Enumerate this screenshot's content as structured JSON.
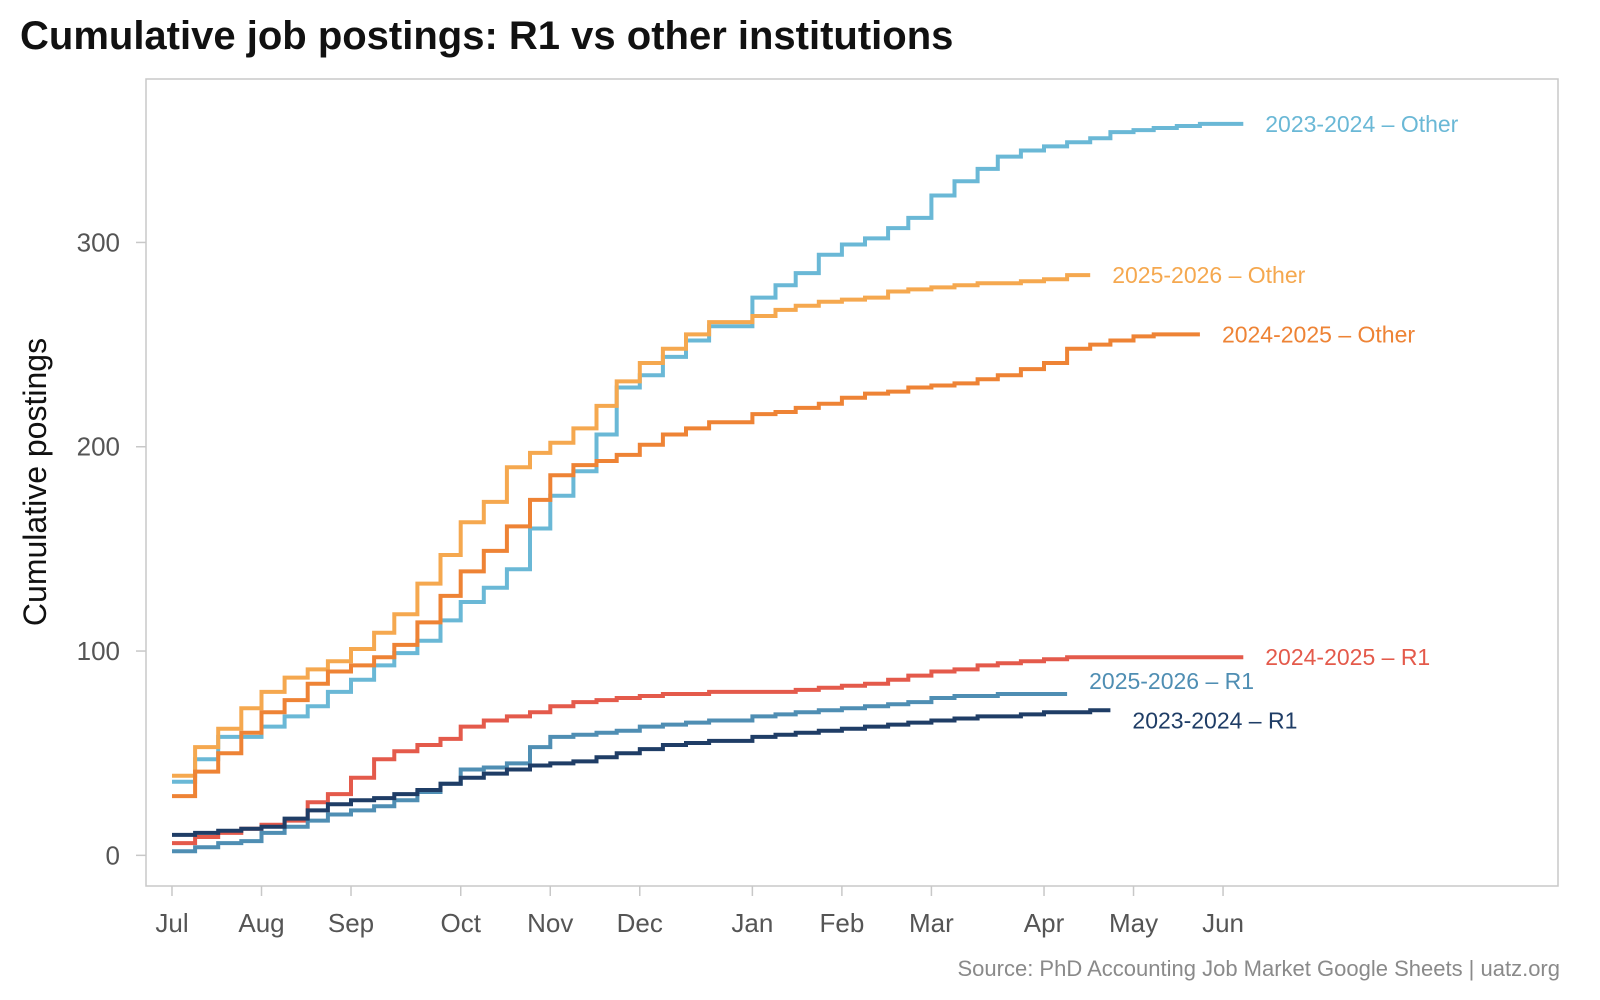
{
  "title": "Cumulative job postings: R1 vs other institutions",
  "source": "Source: PhD Accounting Job Market Google Sheets | uatz.org",
  "chart_data": {
    "type": "line",
    "step": true,
    "title": "Cumulative job postings: R1 vs other institutions",
    "xlabel": "",
    "ylabel": "Cumulative postings",
    "x_unit": "days since Jul 1",
    "x_ticks": [
      {
        "label": "Jul",
        "x": 0
      },
      {
        "label": "Aug",
        "x": 31
      },
      {
        "label": "Sep",
        "x": 62
      },
      {
        "label": "Oct",
        "x": 100
      },
      {
        "label": "Nov",
        "x": 131
      },
      {
        "label": "Dec",
        "x": 162
      },
      {
        "label": "Jan",
        "x": 201
      },
      {
        "label": "Feb",
        "x": 232
      },
      {
        "label": "Mar",
        "x": 263
      },
      {
        "label": "Apr",
        "x": 302
      },
      {
        "label": "May",
        "x": 333
      },
      {
        "label": "Jun",
        "x": 364
      }
    ],
    "y_ticks": [
      0,
      100,
      200,
      300
    ],
    "xlim": [
      -9,
      480
    ],
    "ylim": [
      -15,
      380
    ],
    "grid": false,
    "legend": "direct labels at line ends",
    "series": [
      {
        "name": "2023-2024 – Other",
        "color": "#6ab8d6",
        "x": [
          0,
          8,
          16,
          31,
          39,
          47,
          54,
          62,
          70,
          77,
          85,
          93,
          100,
          108,
          116,
          124,
          131,
          139,
          147,
          154,
          162,
          170,
          178,
          186,
          201,
          209,
          216,
          224,
          232,
          240,
          248,
          255,
          263,
          271,
          279,
          286,
          294,
          302,
          310,
          318,
          325,
          333,
          340,
          348,
          356,
          363,
          371
        ],
        "y": [
          36,
          47,
          58,
          63,
          68,
          73,
          80,
          86,
          93,
          99,
          105,
          115,
          124,
          131,
          140,
          160,
          176,
          188,
          206,
          229,
          235,
          244,
          252,
          259,
          273,
          279,
          285,
          294,
          299,
          302,
          307,
          312,
          323,
          330,
          336,
          342,
          345,
          347,
          349,
          351,
          354,
          355,
          356,
          357,
          358,
          358,
          358
        ]
      },
      {
        "name": "2025-2026 – Other",
        "color": "#f5a84f",
        "x": [
          0,
          8,
          16,
          24,
          31,
          39,
          47,
          54,
          62,
          70,
          77,
          85,
          93,
          100,
          108,
          116,
          124,
          131,
          139,
          147,
          154,
          162,
          170,
          178,
          186,
          201,
          209,
          216,
          224,
          232,
          240,
          248,
          255,
          263,
          271,
          279,
          286,
          294,
          302,
          310,
          318
        ],
        "y": [
          39,
          53,
          62,
          72,
          80,
          87,
          91,
          95,
          101,
          109,
          118,
          133,
          147,
          163,
          173,
          190,
          197,
          202,
          209,
          220,
          232,
          241,
          248,
          255,
          261,
          264,
          267,
          269,
          271,
          272,
          273,
          276,
          277,
          278,
          279,
          280,
          280,
          281,
          282,
          284,
          284
        ]
      },
      {
        "name": "2024-2025 – Other",
        "color": "#ee8335",
        "x": [
          0,
          8,
          16,
          24,
          31,
          39,
          47,
          54,
          62,
          70,
          77,
          85,
          93,
          100,
          108,
          116,
          124,
          131,
          139,
          147,
          154,
          162,
          170,
          178,
          186,
          201,
          209,
          216,
          224,
          232,
          240,
          248,
          255,
          263,
          271,
          279,
          286,
          294,
          302,
          310,
          318,
          325,
          333,
          340,
          348,
          356
        ],
        "y": [
          29,
          41,
          50,
          60,
          70,
          76,
          84,
          90,
          93,
          97,
          103,
          114,
          127,
          139,
          149,
          161,
          174,
          186,
          191,
          193,
          196,
          201,
          206,
          209,
          212,
          216,
          217,
          219,
          221,
          224,
          226,
          227,
          229,
          230,
          231,
          233,
          235,
          238,
          241,
          248,
          250,
          252,
          254,
          255,
          255,
          255
        ]
      },
      {
        "name": "2024-2025 – R1",
        "color": "#e45a4b",
        "x": [
          0,
          8,
          16,
          24,
          31,
          39,
          47,
          54,
          62,
          70,
          77,
          85,
          93,
          100,
          108,
          116,
          124,
          131,
          139,
          147,
          154,
          162,
          170,
          178,
          186,
          201,
          209,
          216,
          224,
          232,
          240,
          248,
          255,
          263,
          271,
          279,
          286,
          294,
          302,
          310,
          318,
          325,
          333,
          340,
          348,
          356,
          363,
          371
        ],
        "y": [
          6,
          9,
          11,
          13,
          15,
          17,
          26,
          30,
          38,
          47,
          51,
          54,
          57,
          63,
          66,
          68,
          70,
          73,
          75,
          76,
          77,
          78,
          79,
          79,
          80,
          80,
          80,
          81,
          82,
          83,
          84,
          86,
          88,
          90,
          91,
          93,
          94,
          95,
          96,
          97,
          97,
          97,
          97,
          97,
          97,
          97,
          97,
          97
        ]
      },
      {
        "name": "2025-2026 – R1",
        "color": "#4f8eb3",
        "x": [
          0,
          8,
          16,
          24,
          31,
          39,
          47,
          54,
          62,
          70,
          77,
          85,
          93,
          100,
          108,
          116,
          124,
          131,
          139,
          147,
          154,
          162,
          170,
          178,
          186,
          201,
          209,
          216,
          224,
          232,
          240,
          248,
          255,
          263,
          271,
          279,
          286,
          294,
          302,
          310
        ],
        "y": [
          2,
          4,
          6,
          7,
          11,
          14,
          17,
          20,
          22,
          24,
          27,
          31,
          35,
          42,
          43,
          45,
          53,
          58,
          59,
          60,
          61,
          63,
          64,
          65,
          66,
          68,
          69,
          70,
          71,
          72,
          73,
          74,
          75,
          77,
          78,
          78,
          79,
          79,
          79,
          79
        ]
      },
      {
        "name": "2023-2024 – R1",
        "color": "#1f3d66",
        "x": [
          0,
          8,
          16,
          24,
          31,
          39,
          47,
          54,
          62,
          70,
          77,
          85,
          93,
          100,
          108,
          116,
          124,
          131,
          139,
          147,
          154,
          162,
          170,
          178,
          186,
          201,
          209,
          216,
          224,
          232,
          240,
          248,
          255,
          263,
          271,
          279,
          286,
          294,
          302,
          310,
          318,
          325
        ],
        "y": [
          10,
          11,
          12,
          13,
          14,
          18,
          22,
          25,
          27,
          28,
          30,
          32,
          35,
          38,
          40,
          42,
          44,
          45,
          46,
          48,
          50,
          52,
          54,
          55,
          56,
          58,
          59,
          60,
          61,
          62,
          63,
          64,
          65,
          66,
          67,
          68,
          68,
          69,
          70,
          70,
          71,
          71
        ]
      }
    ]
  },
  "colors": {
    "frame": "#c8c8c8",
    "tick_text": "#555555",
    "source_text": "#8a8a8a"
  }
}
